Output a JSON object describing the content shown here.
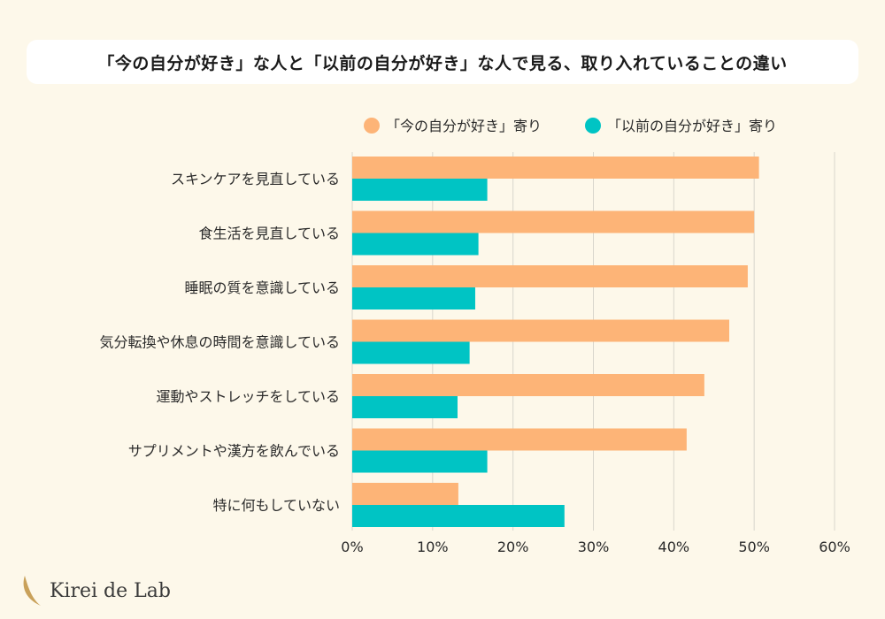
{
  "chart_data": {
    "type": "bar",
    "orientation": "horizontal",
    "title": "「今の自分が好き」な人と「以前の自分が好き」な人で見る、取り入れていることの違い",
    "categories": [
      "スキンケアを見直している",
      "食生活を見直している",
      "睡眠の質を意識している",
      "気分転換や休息の時間を意識している",
      "運動やストレッチをしている",
      "サプリメントや漢方を飲んでいる",
      "特に何もしていない"
    ],
    "series": [
      {
        "name": "「今の自分が好き」寄り",
        "color": "#fdb477",
        "values": [
          50.6,
          50.0,
          49.2,
          46.9,
          43.8,
          41.6,
          13.2
        ]
      },
      {
        "name": "「以前の自分が好き」寄り",
        "color": "#00c4c4",
        "values": [
          16.8,
          15.7,
          15.3,
          14.6,
          13.1,
          16.8,
          26.4
        ]
      }
    ],
    "xlim": [
      0,
      60
    ],
    "ticks": [
      0,
      10,
      20,
      30,
      40,
      50,
      60
    ],
    "tick_labels": [
      "0%",
      "10%",
      "20%",
      "30%",
      "40%",
      "50%",
      "60%"
    ],
    "grid": true,
    "legend_position": "top-right"
  },
  "branding": {
    "logo_text": "Kirei de Lab",
    "logo_color": "#c9a15a"
  }
}
